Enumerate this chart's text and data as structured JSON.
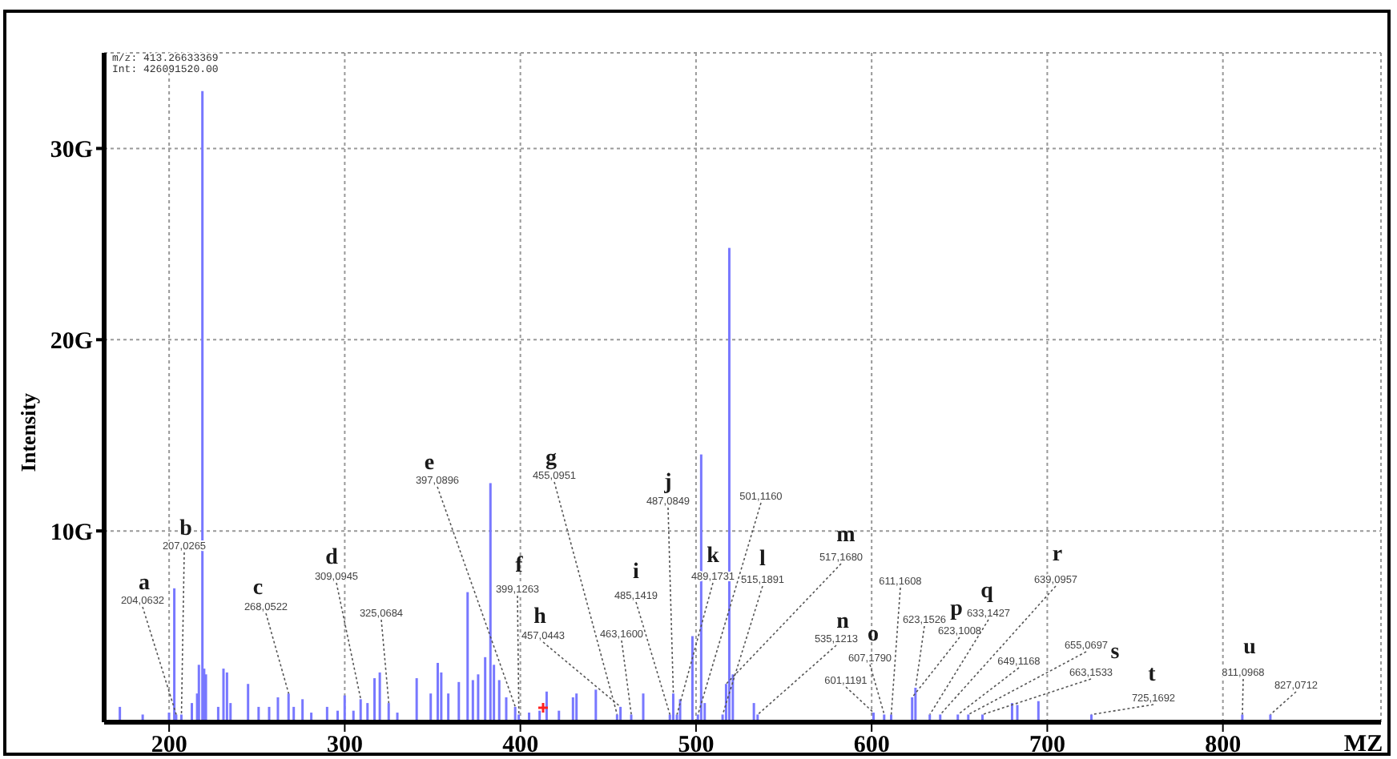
{
  "chart_data": {
    "type": "bar",
    "xlabel": "MZ",
    "ylabel": "Intensity",
    "x": [
      172,
      185,
      200,
      203,
      204.0632,
      207.0265,
      213,
      216,
      217,
      219,
      220,
      221,
      228,
      231,
      233,
      235,
      245,
      251,
      257,
      262,
      268.0522,
      271,
      276,
      281,
      290,
      296,
      300,
      305,
      309.0945,
      313,
      317,
      320,
      325.0684,
      330,
      341,
      349,
      353,
      355,
      359,
      365,
      370,
      373,
      376,
      380,
      383,
      385,
      388,
      392,
      397.0896,
      399.1263,
      405,
      411,
      415,
      422,
      430,
      432,
      443,
      455.0951,
      457.0443,
      463.16,
      470,
      485.1419,
      487.0849,
      489.1731,
      491,
      498,
      501.116,
      503,
      505,
      515.1891,
      517.168,
      519,
      521,
      533,
      535.1213,
      601.1191,
      607.179,
      611.1608,
      623.1008,
      625,
      633.1427,
      639.0957,
      649.1168,
      655.0697,
      663.1533,
      680,
      683,
      695,
      725.1692,
      811.0968,
      827.0712
    ],
    "values": [
      0.8,
      0.4,
      0.5,
      7.0,
      0.4,
      0.4,
      1.0,
      1.5,
      3.0,
      33,
      2.8,
      2.5,
      0.8,
      2.8,
      2.6,
      1.0,
      2.0,
      0.8,
      0.8,
      1.3,
      1.5,
      0.8,
      1.2,
      0.5,
      0.8,
      0.6,
      1.4,
      0.6,
      1.2,
      1.0,
      2.3,
      2.6,
      1.0,
      0.5,
      2.3,
      1.5,
      3.1,
      2.6,
      1.5,
      2.1,
      6.8,
      2.2,
      2.5,
      3.4,
      12.5,
      3.0,
      2.2,
      1.3,
      0.8,
      0.4,
      0.5,
      0.6,
      1.6,
      0.6,
      1.3,
      1.5,
      1.7,
      0.4,
      0.8,
      0.4,
      1.5,
      0.4,
      1.5,
      0.4,
      1.2,
      4.5,
      0.4,
      14.0,
      1.0,
      0.4,
      2.0,
      24.8,
      2.5,
      1.0,
      0.4,
      0.5,
      0.4,
      0.4,
      1.3,
      1.8,
      0.4,
      0.4,
      0.4,
      0.4,
      0.4,
      1.0,
      0.9,
      1.1,
      0.4,
      0.4,
      0.4
    ],
    "color": "#7878ff",
    "xlim": [
      163,
      890
    ],
    "xticks": [
      200,
      300,
      400,
      500,
      600,
      700,
      800
    ],
    "ylim": [
      0,
      35
    ],
    "yticks": [
      {
        "value": 10,
        "label": "10G"
      },
      {
        "value": 20,
        "label": "20G"
      },
      {
        "value": 30,
        "label": "30G"
      }
    ],
    "grid": true,
    "annotations": [
      "m/z: 413.26633369",
      "Int: 426091520.00",
      {
        "text": "a\n204,0632",
        "x": 204.0632,
        "y": 0.4
      },
      {
        "text": "b\n207,0265",
        "x": 207.0265,
        "y": 0.4
      },
      {
        "text": "c\n268,0522",
        "x": 268.0522,
        "y": 1.5
      },
      {
        "text": "d\n309,0945",
        "x": 309.0945,
        "y": 1.2
      },
      {
        "text": "325,0684",
        "x": 325.0684,
        "y": 1.0
      },
      {
        "text": "e\n397,0896",
        "x": 397.0896,
        "y": 0.8
      },
      {
        "text": "f\n399,1263",
        "x": 399.1263,
        "y": 0.4
      },
      {
        "text": "g\n455,0951",
        "x": 455.0951,
        "y": 0.4
      },
      {
        "text": "h\n457,0443",
        "x": 457.0443,
        "y": 0.8
      },
      {
        "text": "463,1600",
        "x": 463.16,
        "y": 0.4
      },
      {
        "text": "i\n485,1419",
        "x": 485.1419,
        "y": 0.4
      },
      {
        "text": "j\n487,0849",
        "x": 487.0849,
        "y": 1.5
      },
      {
        "text": "k\n489,1731",
        "x": 489.1731,
        "y": 0.4
      },
      {
        "text": "501,1160",
        "x": 501.116,
        "y": 0.4
      },
      {
        "text": "l\n515,1891",
        "x": 515.1891,
        "y": 0.4
      },
      {
        "text": "m\n517,1680",
        "x": 517.168,
        "y": 2.0
      },
      {
        "text": "n\n535,1213",
        "x": 535.1213,
        "y": 0.4
      },
      {
        "text": "o\n607,1790",
        "x": 607.179,
        "y": 0.4
      },
      {
        "text": "601,1191",
        "x": 601.1191,
        "y": 0.5
      },
      {
        "text": "611,1608",
        "x": 611.1608,
        "y": 0.4
      },
      {
        "text": "623,1526",
        "x": 625,
        "y": 1.8
      },
      {
        "text": "p\n623,1008",
        "x": 623.1008,
        "y": 1.3
      },
      {
        "text": "q\n633,1427",
        "x": 633.1427,
        "y": 0.4
      },
      {
        "text": "649,1168",
        "x": 649.1168,
        "y": 0.4
      },
      {
        "text": "r\n639,0957",
        "x": 639.0957,
        "y": 0.4
      },
      {
        "text": "655,0697",
        "x": 655.0697,
        "y": 0.4
      },
      {
        "text": "s\n663,1533",
        "x": 663.1533,
        "y": 0.4
      },
      {
        "text": "t\n725,1692",
        "x": 725.1692,
        "y": 0.4
      },
      {
        "text": "u\n811,0968",
        "x": 811.0968,
        "y": 0.4
      },
      {
        "text": "827,0712",
        "x": 827.0712,
        "y": 0.4
      }
    ]
  }
}
